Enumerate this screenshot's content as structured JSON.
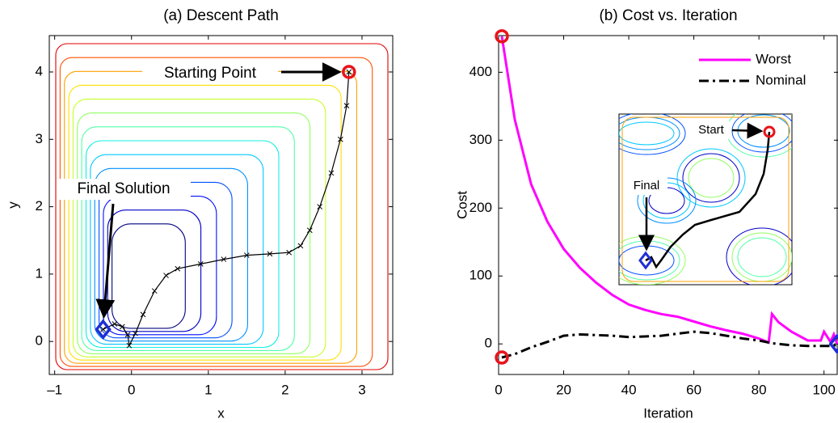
{
  "chart_data": [
    {
      "type": "contour-path",
      "title": "(a) Descent Path",
      "xlabel": "x",
      "ylabel": "y",
      "xlim": [
        -1.07,
        3.4
      ],
      "ylim": [
        -0.49,
        4.54
      ],
      "xticks": [
        {
          "value": -1,
          "label": "–1"
        },
        0,
        1,
        2,
        3
      ],
      "yticks": [
        0,
        1,
        2,
        3,
        4
      ],
      "x": [
        2.83,
        2.8,
        2.72,
        2.6,
        2.45,
        2.32,
        2.2,
        2.05,
        1.8,
        1.5,
        1.2,
        0.9,
        0.6,
        0.45,
        0.3,
        0.15,
        0.05,
        -0.03,
        -0.05,
        -0.12,
        -0.22,
        -0.37
      ],
      "values": [
        4.0,
        3.5,
        3.0,
        2.5,
        2.0,
        1.65,
        1.42,
        1.32,
        1.3,
        1.28,
        1.22,
        1.15,
        1.08,
        0.98,
        0.75,
        0.4,
        0.12,
        -0.06,
        0.1,
        0.22,
        0.26,
        0.18
      ],
      "color": "#000000",
      "markers": [
        {
          "x": 2.83,
          "y": 4.0,
          "shape": "circle",
          "color": "#e8141b"
        },
        {
          "x": -0.37,
          "y": 0.18,
          "shape": "diamond",
          "color": "#1f2fd6"
        }
      ],
      "annotations": [
        "Starting Point",
        "Final Solution"
      ]
    },
    {
      "type": "line",
      "title": "(b) Cost vs. Iteration",
      "xlabel": "Iteration",
      "ylabel": "Cost",
      "xlim": [
        0,
        104.3
      ],
      "ylim": [
        -45,
        454
      ],
      "xticks": [
        0,
        20,
        40,
        60,
        80,
        100
      ],
      "yticks": [
        0,
        100,
        200,
        300,
        400
      ],
      "legend": "upper right",
      "x": [
        1,
        5,
        10,
        15,
        20,
        25,
        30,
        35,
        40,
        45,
        50,
        55,
        60,
        65,
        70,
        75,
        80,
        83,
        84,
        86,
        90,
        95,
        99,
        100,
        102,
        103,
        104
      ],
      "series": [
        {
          "name": "Worst",
          "color": "#ff00ff",
          "style": "solid",
          "values": [
            453,
            330,
            235,
            180,
            140,
            112,
            90,
            72,
            58,
            50,
            44,
            40,
            33,
            26,
            20,
            15,
            8,
            2,
            44,
            32,
            18,
            5,
            5,
            18,
            3,
            14,
            0
          ]
        },
        {
          "name": "Nominal",
          "color": "#000000",
          "style": "dashdot",
          "values": [
            -20,
            -15,
            -5,
            3,
            12,
            14,
            13,
            12,
            10,
            11,
            12,
            15,
            18,
            16,
            12,
            8,
            5,
            2,
            1,
            0,
            -2,
            -3,
            -3,
            -3,
            -3,
            -2,
            -2
          ]
        }
      ],
      "markers": [
        {
          "x": 1,
          "y": 453,
          "shape": "circle",
          "color": "#e8141b"
        },
        {
          "x": 1,
          "y": -20,
          "shape": "circle",
          "color": "#e8141b"
        },
        {
          "x": 104,
          "y": 0,
          "shape": "diamond",
          "color": "#1f2fd6"
        }
      ],
      "annotations": [
        "Start",
        "Final"
      ]
    }
  ]
}
